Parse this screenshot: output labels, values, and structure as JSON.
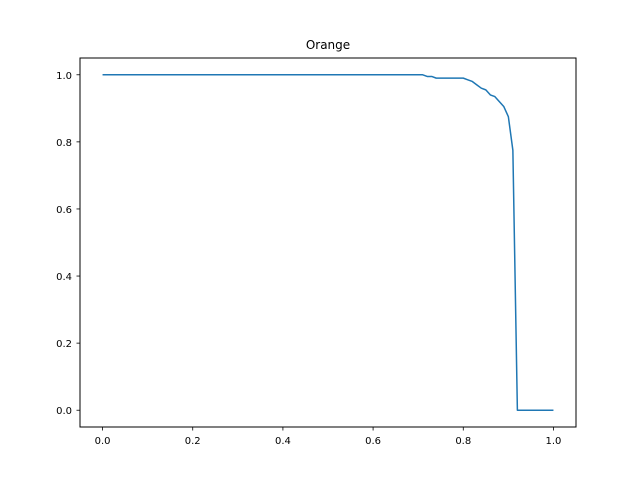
{
  "chart_data": {
    "type": "line",
    "title": "Orange",
    "xlabel": "",
    "ylabel": "",
    "xlim": [
      -0.05,
      1.05
    ],
    "ylim": [
      -0.05,
      1.05
    ],
    "grid": false,
    "x_ticks": [
      "0.0",
      "0.2",
      "0.4",
      "0.6",
      "0.8",
      "1.0"
    ],
    "y_ticks": [
      "0.0",
      "0.2",
      "0.4",
      "0.6",
      "0.8",
      "1.0"
    ],
    "series": [
      {
        "color": "#1f77b4",
        "x": [
          0.0,
          0.1,
          0.2,
          0.3,
          0.4,
          0.5,
          0.6,
          0.7,
          0.71,
          0.72,
          0.73,
          0.74,
          0.75,
          0.76,
          0.77,
          0.78,
          0.79,
          0.8,
          0.81,
          0.82,
          0.83,
          0.84,
          0.85,
          0.86,
          0.87,
          0.88,
          0.89,
          0.9,
          0.91,
          0.92,
          0.93,
          0.94,
          0.95,
          0.96,
          0.97,
          0.98,
          0.99,
          1.0
        ],
        "y": [
          1.0,
          1.0,
          1.0,
          1.0,
          1.0,
          1.0,
          1.0,
          1.0,
          1.0,
          0.995,
          0.995,
          0.99,
          0.99,
          0.99,
          0.99,
          0.99,
          0.99,
          0.99,
          0.985,
          0.98,
          0.97,
          0.96,
          0.955,
          0.94,
          0.935,
          0.92,
          0.905,
          0.875,
          0.775,
          0.0,
          0.0,
          0.0,
          0.0,
          0.0,
          0.0,
          0.0,
          0.0,
          0.0
        ]
      }
    ]
  }
}
